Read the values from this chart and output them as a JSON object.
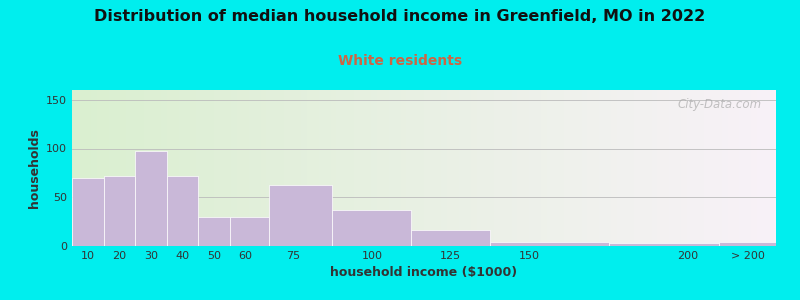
{
  "title": "Distribution of median household income in Greenfield, MO in 2022",
  "subtitle": "White residents",
  "xlabel": "household income ($1000)",
  "ylabel": "households",
  "bar_values": [
    70,
    72,
    97,
    72,
    30,
    30,
    63,
    37,
    16,
    4,
    3,
    4
  ],
  "bar_color": "#c9b8d8",
  "bar_edgecolor": "#ffffff",
  "ylim": [
    0,
    160
  ],
  "yticks": [
    0,
    50,
    100,
    150
  ],
  "background_outer": "#00eeee",
  "background_inner_left": "#daefd0",
  "background_inner_right": "#f8f2f8",
  "title_fontsize": 11.5,
  "subtitle_fontsize": 10,
  "subtitle_color": "#cc6644",
  "axis_label_fontsize": 9,
  "tick_fontsize": 8,
  "watermark": "City-Data.com",
  "bar_edges": [
    5,
    15,
    25,
    35,
    45,
    55,
    67.5,
    87.5,
    112.5,
    137.5,
    175,
    210,
    228
  ],
  "xtick_positions": [
    10,
    20,
    30,
    40,
    50,
    60,
    75,
    100,
    125,
    150,
    200,
    219
  ],
  "xtick_labels": [
    "10",
    "20",
    "30",
    "40",
    "50",
    "60",
    "75",
    "100",
    "125",
    "150",
    "200",
    "> 200"
  ],
  "xlim": [
    5,
    228
  ]
}
